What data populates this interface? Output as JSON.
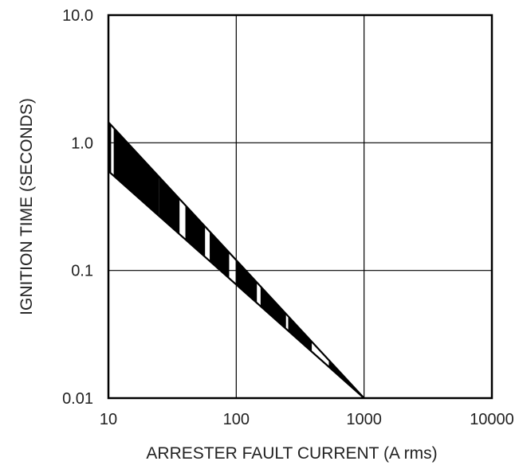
{
  "chart_data": {
    "type": "area",
    "xscale": "log",
    "yscale": "log",
    "xlabel": "ARRESTER FAULT CURRENT (A rms)",
    "ylabel": "IGNITION TIME (SECONDS)",
    "xlim": [
      10,
      10000
    ],
    "ylim": [
      0.01,
      10.0
    ],
    "grid": true,
    "x_tick_labels": [
      {
        "value": 10,
        "label": "10"
      },
      {
        "value": 100,
        "label": "100"
      },
      {
        "value": 1000,
        "label": "1000"
      },
      {
        "value": 10000,
        "label": "10000"
      }
    ],
    "y_tick_labels": [
      {
        "value": 0.01,
        "label": "0.01"
      },
      {
        "value": 0.1,
        "label": "0.1"
      },
      {
        "value": 1.0,
        "label": "1.0"
      },
      {
        "value": 10.0,
        "label": "10.0"
      }
    ],
    "series": [
      {
        "x": [
          10,
          1000
        ],
        "y": [
          1.45,
          0.01
        ]
      },
      {
        "x": [
          10,
          1000
        ],
        "y": [
          0.6,
          0.01
        ]
      }
    ],
    "band_stripes": [
      {
        "x": [
          10,
          10.5
        ]
      },
      {
        "x": [
          11,
          16.5
        ]
      },
      {
        "x": [
          15.5,
          25
        ]
      },
      {
        "x": [
          25,
          36
        ]
      },
      {
        "x": [
          40,
          57
        ]
      },
      {
        "x": [
          62,
          88
        ]
      },
      {
        "x": [
          99,
          145
        ]
      },
      {
        "x": [
          155,
          245
        ]
      },
      {
        "x": [
          255,
          390
        ]
      },
      {
        "x": [
          530,
          790
        ]
      }
    ]
  }
}
